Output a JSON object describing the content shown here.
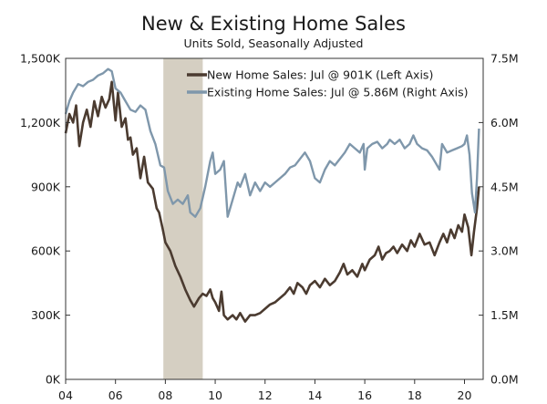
{
  "chart_data": {
    "type": "line",
    "title": "New & Existing Home Sales",
    "subtitle": "Units Sold, Seasonally Adjusted",
    "x_axis": {
      "range": [
        2004.0,
        2020.75
      ],
      "ticks": [
        2004,
        2006,
        2008,
        2010,
        2012,
        2014,
        2016,
        2018,
        2020
      ],
      "tick_labels": [
        "04",
        "06",
        "08",
        "10",
        "12",
        "14",
        "16",
        "18",
        "20"
      ]
    },
    "left_axis": {
      "range": [
        0,
        1500
      ],
      "ticks": [
        0,
        300,
        600,
        900,
        1200,
        1500
      ],
      "tick_labels": [
        "0K",
        "300K",
        "600K",
        "900K",
        "1,200K",
        "1,500K"
      ]
    },
    "right_axis": {
      "range": [
        0,
        7.5
      ],
      "ticks": [
        0,
        1.5,
        3.0,
        4.5,
        6.0,
        7.5
      ],
      "tick_labels": [
        "0.0M",
        "1.5M",
        "3.0M",
        "4.5M",
        "6.0M",
        "7.5M"
      ]
    },
    "recession_band": {
      "start": 2007.92,
      "end": 2009.5,
      "color": "#d5cfc2"
    },
    "legend": {
      "placement": "top-right"
    },
    "series": [
      {
        "name": "New Home Sales: Jul @ 901K (Left Axis)",
        "axis": "left",
        "color": "#4b3b30",
        "points": [
          [
            2004.0,
            1150
          ],
          [
            2004.15,
            1240
          ],
          [
            2004.3,
            1200
          ],
          [
            2004.42,
            1280
          ],
          [
            2004.55,
            1090
          ],
          [
            2004.7,
            1200
          ],
          [
            2004.85,
            1260
          ],
          [
            2005.0,
            1180
          ],
          [
            2005.15,
            1300
          ],
          [
            2005.3,
            1230
          ],
          [
            2005.45,
            1320
          ],
          [
            2005.6,
            1270
          ],
          [
            2005.75,
            1310
          ],
          [
            2005.85,
            1390
          ],
          [
            2006.0,
            1210
          ],
          [
            2006.1,
            1340
          ],
          [
            2006.25,
            1180
          ],
          [
            2006.4,
            1220
          ],
          [
            2006.5,
            1120
          ],
          [
            2006.6,
            1130
          ],
          [
            2006.7,
            1050
          ],
          [
            2006.85,
            1080
          ],
          [
            2007.0,
            940
          ],
          [
            2007.15,
            1040
          ],
          [
            2007.3,
            920
          ],
          [
            2007.5,
            890
          ],
          [
            2007.65,
            800
          ],
          [
            2007.75,
            780
          ],
          [
            2007.9,
            700
          ],
          [
            2008.0,
            640
          ],
          [
            2008.2,
            600
          ],
          [
            2008.4,
            530
          ],
          [
            2008.6,
            480
          ],
          [
            2008.8,
            420
          ],
          [
            2009.0,
            370
          ],
          [
            2009.15,
            340
          ],
          [
            2009.35,
            380
          ],
          [
            2009.5,
            400
          ],
          [
            2009.65,
            390
          ],
          [
            2009.8,
            420
          ],
          [
            2009.9,
            380
          ],
          [
            2010.0,
            360
          ],
          [
            2010.15,
            320
          ],
          [
            2010.25,
            410
          ],
          [
            2010.35,
            300
          ],
          [
            2010.5,
            280
          ],
          [
            2010.7,
            300
          ],
          [
            2010.85,
            280
          ],
          [
            2011.0,
            310
          ],
          [
            2011.2,
            270
          ],
          [
            2011.4,
            300
          ],
          [
            2011.6,
            300
          ],
          [
            2011.8,
            310
          ],
          [
            2012.0,
            330
          ],
          [
            2012.2,
            350
          ],
          [
            2012.4,
            360
          ],
          [
            2012.6,
            380
          ],
          [
            2012.8,
            400
          ],
          [
            2013.0,
            430
          ],
          [
            2013.15,
            400
          ],
          [
            2013.3,
            450
          ],
          [
            2013.5,
            430
          ],
          [
            2013.65,
            400
          ],
          [
            2013.8,
            440
          ],
          [
            2014.0,
            460
          ],
          [
            2014.2,
            430
          ],
          [
            2014.4,
            470
          ],
          [
            2014.6,
            440
          ],
          [
            2014.8,
            460
          ],
          [
            2015.0,
            500
          ],
          [
            2015.15,
            540
          ],
          [
            2015.3,
            490
          ],
          [
            2015.5,
            510
          ],
          [
            2015.7,
            480
          ],
          [
            2015.9,
            540
          ],
          [
            2016.0,
            510
          ],
          [
            2016.2,
            560
          ],
          [
            2016.4,
            580
          ],
          [
            2016.55,
            620
          ],
          [
            2016.7,
            560
          ],
          [
            2016.85,
            590
          ],
          [
            2017.0,
            600
          ],
          [
            2017.15,
            620
          ],
          [
            2017.3,
            590
          ],
          [
            2017.5,
            630
          ],
          [
            2017.7,
            600
          ],
          [
            2017.85,
            650
          ],
          [
            2018.0,
            620
          ],
          [
            2018.2,
            680
          ],
          [
            2018.4,
            630
          ],
          [
            2018.6,
            640
          ],
          [
            2018.8,
            580
          ],
          [
            2019.0,
            640
          ],
          [
            2019.15,
            680
          ],
          [
            2019.3,
            640
          ],
          [
            2019.45,
            700
          ],
          [
            2019.6,
            660
          ],
          [
            2019.75,
            720
          ],
          [
            2019.9,
            690
          ],
          [
            2020.0,
            770
          ],
          [
            2020.15,
            710
          ],
          [
            2020.28,
            580
          ],
          [
            2020.38,
            690
          ],
          [
            2020.5,
            800
          ],
          [
            2020.58,
            901
          ]
        ]
      },
      {
        "name": "Existing Home Sales: Jul @ 5.86M (Right Axis)",
        "axis": "right",
        "color": "#7f97ab",
        "points": [
          [
            2004.0,
            6.2
          ],
          [
            2004.15,
            6.5
          ],
          [
            2004.3,
            6.7
          ],
          [
            2004.5,
            6.9
          ],
          [
            2004.7,
            6.85
          ],
          [
            2004.9,
            6.95
          ],
          [
            2005.1,
            7.0
          ],
          [
            2005.3,
            7.1
          ],
          [
            2005.5,
            7.15
          ],
          [
            2005.7,
            7.25
          ],
          [
            2005.85,
            7.2
          ],
          [
            2006.0,
            6.8
          ],
          [
            2006.2,
            6.7
          ],
          [
            2006.4,
            6.5
          ],
          [
            2006.6,
            6.3
          ],
          [
            2006.8,
            6.25
          ],
          [
            2007.0,
            6.4
          ],
          [
            2007.2,
            6.3
          ],
          [
            2007.4,
            5.8
          ],
          [
            2007.6,
            5.5
          ],
          [
            2007.8,
            5.0
          ],
          [
            2007.95,
            4.95
          ],
          [
            2008.1,
            4.4
          ],
          [
            2008.3,
            4.1
          ],
          [
            2008.5,
            4.2
          ],
          [
            2008.7,
            4.1
          ],
          [
            2008.9,
            4.3
          ],
          [
            2009.0,
            3.9
          ],
          [
            2009.2,
            3.8
          ],
          [
            2009.4,
            4.0
          ],
          [
            2009.6,
            4.5
          ],
          [
            2009.8,
            5.1
          ],
          [
            2009.9,
            5.3
          ],
          [
            2010.0,
            4.8
          ],
          [
            2010.2,
            4.9
          ],
          [
            2010.35,
            5.1
          ],
          [
            2010.5,
            3.8
          ],
          [
            2010.7,
            4.2
          ],
          [
            2010.9,
            4.6
          ],
          [
            2011.0,
            4.5
          ],
          [
            2011.2,
            4.8
          ],
          [
            2011.4,
            4.3
          ],
          [
            2011.6,
            4.6
          ],
          [
            2011.8,
            4.4
          ],
          [
            2012.0,
            4.6
          ],
          [
            2012.2,
            4.5
          ],
          [
            2012.4,
            4.6
          ],
          [
            2012.6,
            4.7
          ],
          [
            2012.8,
            4.8
          ],
          [
            2013.0,
            4.95
          ],
          [
            2013.2,
            5.0
          ],
          [
            2013.4,
            5.15
          ],
          [
            2013.6,
            5.3
          ],
          [
            2013.8,
            5.1
          ],
          [
            2014.0,
            4.7
          ],
          [
            2014.2,
            4.6
          ],
          [
            2014.4,
            4.9
          ],
          [
            2014.6,
            5.1
          ],
          [
            2014.8,
            5.0
          ],
          [
            2015.0,
            5.15
          ],
          [
            2015.2,
            5.3
          ],
          [
            2015.4,
            5.5
          ],
          [
            2015.6,
            5.4
          ],
          [
            2015.8,
            5.3
          ],
          [
            2015.95,
            5.5
          ],
          [
            2016.0,
            4.9
          ],
          [
            2016.1,
            5.4
          ],
          [
            2016.3,
            5.5
          ],
          [
            2016.5,
            5.55
          ],
          [
            2016.7,
            5.4
          ],
          [
            2016.9,
            5.5
          ],
          [
            2017.0,
            5.6
          ],
          [
            2017.2,
            5.5
          ],
          [
            2017.4,
            5.6
          ],
          [
            2017.6,
            5.4
          ],
          [
            2017.8,
            5.5
          ],
          [
            2017.95,
            5.7
          ],
          [
            2018.1,
            5.5
          ],
          [
            2018.3,
            5.4
          ],
          [
            2018.5,
            5.35
          ],
          [
            2018.7,
            5.2
          ],
          [
            2018.9,
            5.0
          ],
          [
            2019.0,
            4.9
          ],
          [
            2019.1,
            5.5
          ],
          [
            2019.3,
            5.3
          ],
          [
            2019.5,
            5.35
          ],
          [
            2019.7,
            5.4
          ],
          [
            2019.9,
            5.45
          ],
          [
            2020.0,
            5.5
          ],
          [
            2020.1,
            5.7
          ],
          [
            2020.2,
            5.25
          ],
          [
            2020.3,
            4.35
          ],
          [
            2020.42,
            3.9
          ],
          [
            2020.5,
            4.7
          ],
          [
            2020.58,
            5.86
          ]
        ]
      }
    ]
  }
}
